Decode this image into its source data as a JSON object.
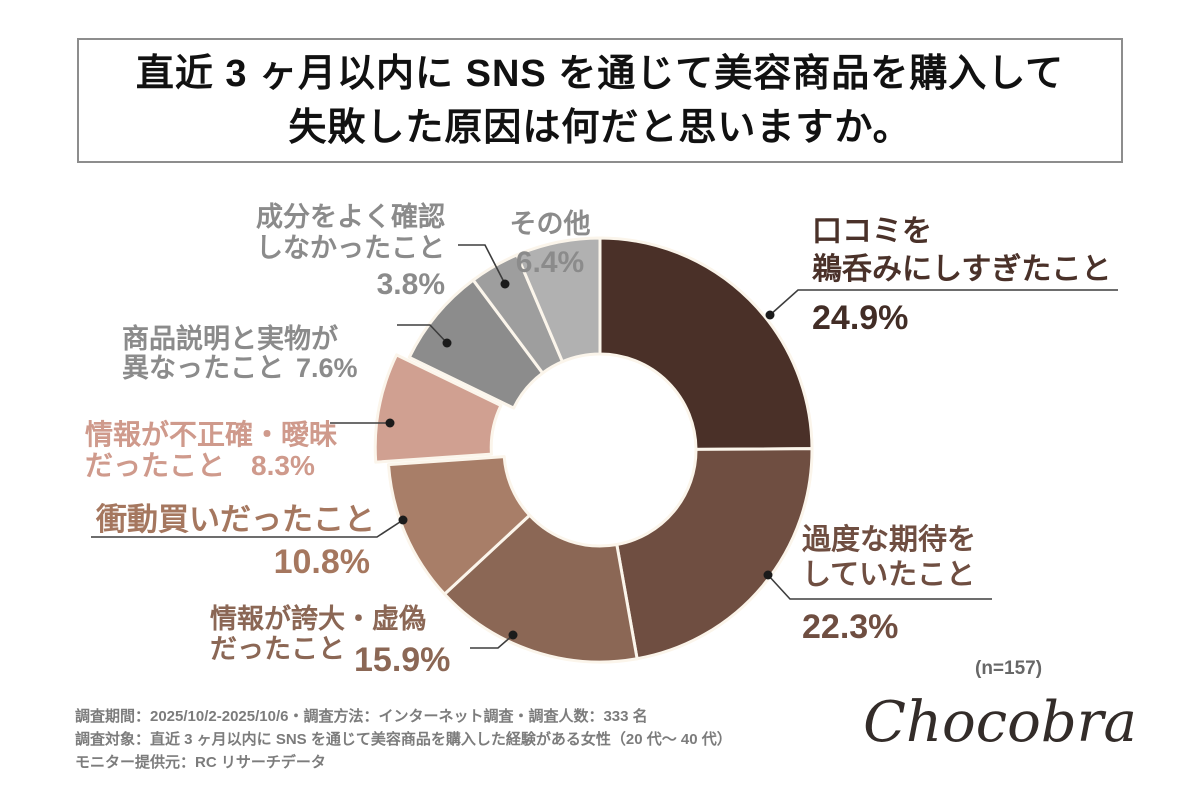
{
  "title": {
    "text": "直近 3 ヶ月以内に SNS を通じて美容商品を購入して\n失敗した原因は何だと思いますか。"
  },
  "chart_data": {
    "type": "pie",
    "donut": true,
    "title": "直近 3 ヶ月以内に SNS を通じて美容商品を購入して失敗した原因は何だと思いますか。",
    "unit": "%",
    "start_angle_deg": 0,
    "direction": "clockwise",
    "sample_note": "(n=157)",
    "divider_color": "#fbf5eb",
    "segments": [
      {
        "id": "kuchikomi",
        "label": "口コミを鵜呑みにしすぎたこと",
        "value": 24.9,
        "color": "#4a3028",
        "exploded": false
      },
      {
        "id": "kado",
        "label": "過度な期待をしていたこと",
        "value": 22.3,
        "color": "#6f4e41",
        "exploded": false
      },
      {
        "id": "kodai",
        "label": "情報が誇大・虚偽だったこと",
        "value": 15.9,
        "color": "#8b6755",
        "exploded": false
      },
      {
        "id": "shodo",
        "label": "衝動買いだったこと",
        "value": 10.8,
        "color": "#a87e68",
        "exploded": false
      },
      {
        "id": "fuseikaku",
        "label": "情報が不正確・曖昧だったこと",
        "value": 8.3,
        "color": "#d0a091",
        "exploded": true
      },
      {
        "id": "shohin",
        "label": "商品説明と実物が異なったこと",
        "value": 7.6,
        "color": "#8c8c8c",
        "exploded": false
      },
      {
        "id": "seibun",
        "label": "成分をよく確認しなかったこと",
        "value": 3.8,
        "color": "#9e9e9e",
        "exploded": false
      },
      {
        "id": "sonota",
        "label": "その他",
        "value": 6.4,
        "color": "#b1b1b1",
        "exploded": false
      }
    ]
  },
  "callouts": {
    "kuchikomi": {
      "text": "口コミを\n鵜呑みにしすぎたこと",
      "pct": "24.9%"
    },
    "kado": {
      "text": "過度な期待を\nしていたこと",
      "pct": "22.3%"
    },
    "kodai": {
      "text": "情報が誇大・虚偽\nだったこと",
      "pct": "15.9%"
    },
    "shodo": {
      "text": "衝動買いだったこと",
      "pct": "10.8%"
    },
    "fuseikaku": {
      "text": "情報が不正確・曖昧\nだったこと",
      "pct": "8.3%"
    },
    "shohin": {
      "text": "商品説明と実物が\n異なったこと",
      "pct": "7.6%"
    },
    "seibun": {
      "text": "成分をよく確認\nしなかったこと",
      "pct": "3.8%"
    },
    "sonota": {
      "text": "その他",
      "pct": "6.4%"
    }
  },
  "notes": {
    "sample": "(n=157)",
    "survey": "調査期間：2025/10/2-2025/10/6・調査方法：インターネット調査・調査人数：333 名\n調査対象：直近 3 ヶ月以内に SNS を通じて美容商品を購入した経験がある女性（20 代～ 40 代）\nモニター提供元：RC リサーチデータ",
    "brand": "Chocobra"
  }
}
